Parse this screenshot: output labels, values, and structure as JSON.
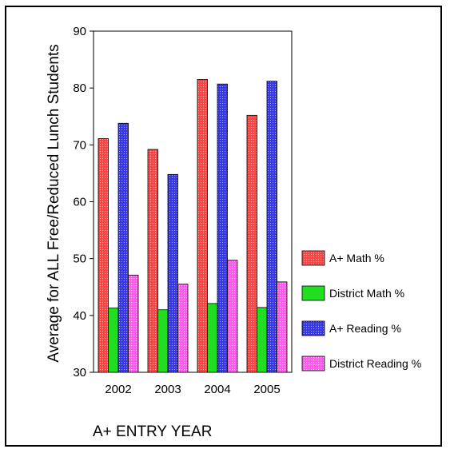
{
  "chart_data": {
    "type": "bar",
    "categories": [
      "2002",
      "2003",
      "2004",
      "2005"
    ],
    "series": [
      {
        "name": "A+ Math %",
        "values": [
          71.1,
          69.2,
          81.5,
          75.2
        ],
        "color": "#ff4a4a",
        "pattern": "crosshatch"
      },
      {
        "name": "District Math %",
        "values": [
          41.3,
          41.0,
          42.1,
          41.4
        ],
        "color": "#22dd22",
        "pattern": "solid"
      },
      {
        "name": "A+ Reading %",
        "values": [
          73.8,
          64.8,
          80.7,
          81.2
        ],
        "color": "#3a3aee",
        "pattern": "crosshatch"
      },
      {
        "name": "District Reading %",
        "values": [
          47.1,
          45.5,
          49.7,
          45.9
        ],
        "color": "#ff55ee",
        "pattern": "dots"
      }
    ],
    "ylim": [
      30,
      90
    ],
    "yticks": [
      30,
      40,
      50,
      60,
      70,
      80,
      90
    ],
    "ylabel": "Average for ALL Free/Reduced Lunch Students",
    "xlabel": "A+ ENTRY YEAR",
    "legend_position": "right",
    "grid": false
  }
}
